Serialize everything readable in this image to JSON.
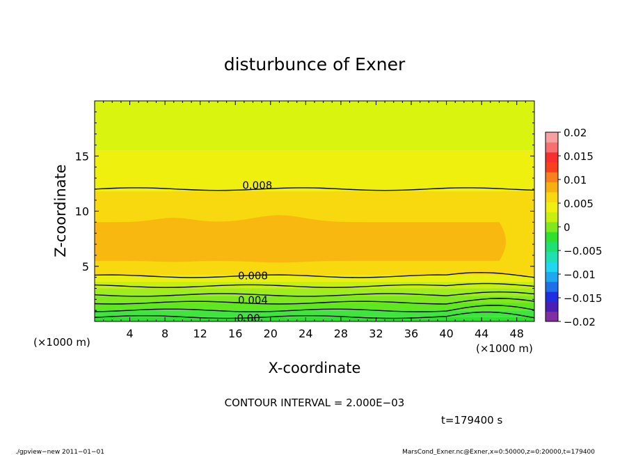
{
  "chart_data": {
    "type": "heatmap",
    "title": "disturbunce of Exner",
    "xlabel": "X-coordinate",
    "ylabel": "Z-coordinate",
    "x_unit_left": "(×1000 m)",
    "x_unit_right": "(×1000 m)",
    "xlim": [
      0,
      50
    ],
    "ylim": [
      0,
      20
    ],
    "xticks": [
      4,
      8,
      12,
      16,
      20,
      24,
      28,
      32,
      36,
      40,
      44,
      48
    ],
    "yticks": [
      5,
      10,
      15
    ],
    "colorbar": {
      "levels": [
        -0.02,
        -0.015,
        -0.01,
        -0.005,
        0,
        0.005,
        0.01,
        0.015,
        0.02
      ],
      "labels": [
        "0.02",
        "0.015",
        "0.01",
        "0.005",
        "0",
        "−0.005",
        "−0.01",
        "−0.015",
        "−0.02"
      ],
      "colors": [
        "#7f2f9f",
        "#4a1fb8",
        "#1f2fe0",
        "#1f6fe8",
        "#1fa7f0",
        "#1fd7f0",
        "#1fe0b0",
        "#1fe070",
        "#2fe02f",
        "#7fe81f",
        "#c8f00f",
        "#f0f00f",
        "#f8d80f",
        "#f8b00f",
        "#f8801f",
        "#f8401f",
        "#f82f2f",
        "#f86f6f",
        "#f89f9f"
      ]
    },
    "bands": [
      {
        "z": [
          0.0,
          0.4
        ],
        "value": 0.0,
        "color": "#2fe02f"
      },
      {
        "z": [
          0.4,
          1.0
        ],
        "value": 0.001,
        "color": "#3fe43f"
      },
      {
        "z": [
          1.0,
          1.7
        ],
        "value": 0.003,
        "color": "#5fe81f"
      },
      {
        "z": [
          1.7,
          2.3
        ],
        "value": 0.004,
        "color": "#7fe81f"
      },
      {
        "z": [
          2.3,
          3.0
        ],
        "value": 0.005,
        "color": "#a0ec1f"
      },
      {
        "z": [
          3.0,
          3.6
        ],
        "value": 0.006,
        "color": "#c8f00f"
      },
      {
        "z": [
          3.6,
          4.2
        ],
        "value": 0.007,
        "color": "#e8f00f"
      },
      {
        "z": [
          4.2,
          11.8
        ],
        "value": 0.009,
        "color": "#f8d80f"
      },
      {
        "z": [
          11.8,
          15.5
        ],
        "value": 0.007,
        "color": "#f0f00f"
      },
      {
        "z": [
          15.5,
          20.0
        ],
        "value": 0.005,
        "color": "#d8f40f"
      }
    ],
    "core": {
      "z_range": [
        5.5,
        9.0
      ],
      "value": 0.0095,
      "color": "#f8b80f"
    },
    "contour_labels": [
      {
        "label": "0.008",
        "x": 18.5,
        "z": 12.4
      },
      {
        "label": "0.008",
        "x": 18.0,
        "z": 4.2
      },
      {
        "label": "0.004",
        "x": 18.0,
        "z": 2.0
      },
      {
        "label": "0.00",
        "x": 17.5,
        "z": 0.35
      }
    ],
    "contour_lines_z": [
      12.0,
      4.1,
      3.2,
      2.4,
      1.7,
      1.0,
      0.4
    ],
    "contour_interval_text": "CONTOUR INTERVAL = 2.000E−03",
    "time_text": "t=179400 s",
    "footer_left": "./gpview−new  2011−01−01",
    "footer_right": "MarsCond_Exner.nc@Exner,x=0:50000,z=0:20000,t=179400"
  }
}
